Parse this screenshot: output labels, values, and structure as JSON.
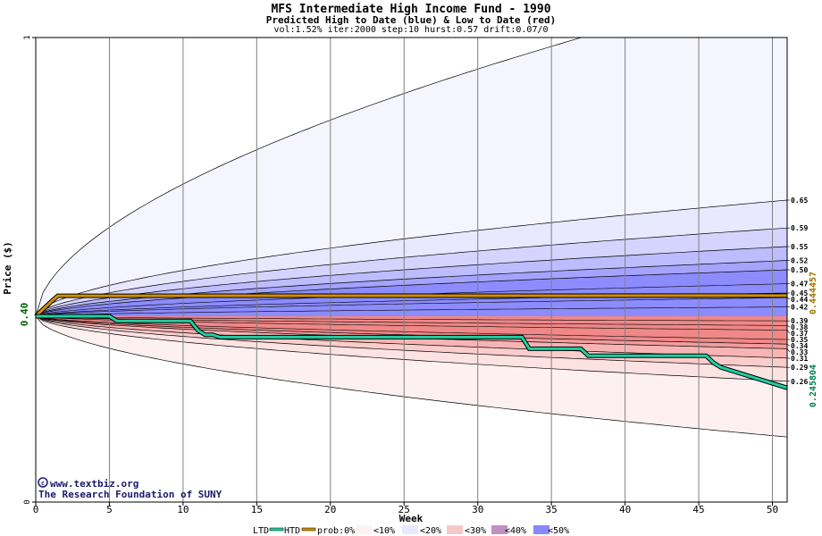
{
  "header": {
    "title": "MFS Intermediate High Income Fund - 1990",
    "subtitle": "Predicted High to Date (blue) &  Low to Date (red)",
    "params": "vol:1.52% iter:2000 step:10 hurst:0.57 drift:0.07/0"
  },
  "watermark": {
    "line1": "www.textbiz.org",
    "line2": "The Research Foundation of SUNY"
  },
  "colors": {
    "htd_line": "#20d0a0",
    "prob_line": "#d09000",
    "ltd_label": "#00804a",
    "htd_label": "#a07000",
    "band_0": "#fdf2f2",
    "band_10": "#f5f5ff",
    "band_20": "#ddddff",
    "band_30": "#c8c8ff",
    "band_40": "#a8a8ff",
    "band_50": "#8888ff",
    "red_0": "#fdeeee",
    "red_10": "#fde0e0",
    "red_20": "#fbc8c8",
    "red_30": "#f8b0b0",
    "red_40": "#f49696",
    "red_50": "#f08080",
    "grid": "#808080"
  },
  "legend": {
    "ltd": "LTD",
    "htd": "HTD",
    "prob": "prob:0%",
    "b10": "<10%",
    "b20": "<20%",
    "b30": "<30%",
    "b40": "<40%",
    "b50": "<50%"
  },
  "chart_data": {
    "type": "area",
    "title": "MFS Intermediate High Income Fund - 1990",
    "xlabel": "Week",
    "ylabel": "Price ($)",
    "xlim": [
      0,
      51
    ],
    "ylim": [
      0,
      1
    ],
    "xticks": [
      0,
      5,
      10,
      15,
      20,
      25,
      30,
      35,
      40,
      45,
      50
    ],
    "yticks": [
      0,
      1
    ],
    "y_current_label": "0.40",
    "start_price": 0.4,
    "htd_value_label": "0.444457",
    "ltd_value_label": "0.245804",
    "right_labels": [
      "0.65",
      "0.59",
      "0.55",
      "0.52",
      "0.50",
      "0.47",
      "0.45",
      "0.44",
      "0.42",
      "0.39",
      "0.38",
      "0.37",
      "0.35",
      "0.34",
      "0.33",
      "0.31",
      "0.29",
      "0.26"
    ],
    "blue_bands": [
      {
        "level": "0%",
        "end": 1.12
      },
      {
        "level": "10%",
        "end": 0.65
      },
      {
        "level": "20%",
        "end": 0.59
      },
      {
        "level": "30%",
        "end": 0.55
      },
      {
        "level": "40%",
        "end": 0.52
      },
      {
        "level": "50%",
        "end": 0.5
      }
    ],
    "red_bands": [
      {
        "level": "0%",
        "end": 0.14
      },
      {
        "level": "10%",
        "end": 0.26
      },
      {
        "level": "20%",
        "end": 0.29
      },
      {
        "level": "30%",
        "end": 0.31
      },
      {
        "level": "40%",
        "end": 0.33
      },
      {
        "level": "50%",
        "end": 0.34
      }
    ],
    "htd_series": {
      "name": "HTD",
      "x": [
        0,
        1,
        1.5,
        51
      ],
      "y": [
        0.4,
        0.43,
        0.444,
        0.444457
      ]
    },
    "ltd_series": {
      "name": "LTD",
      "x": [
        0,
        5,
        5.5,
        10.5,
        11,
        11.5,
        12,
        12.5,
        33,
        33.5,
        37,
        37.5,
        45.5,
        46,
        46.5,
        51
      ],
      "y": [
        0.4,
        0.4,
        0.39,
        0.39,
        0.37,
        0.36,
        0.36,
        0.355,
        0.355,
        0.33,
        0.33,
        0.315,
        0.315,
        0.3,
        0.29,
        0.245804
      ]
    }
  }
}
